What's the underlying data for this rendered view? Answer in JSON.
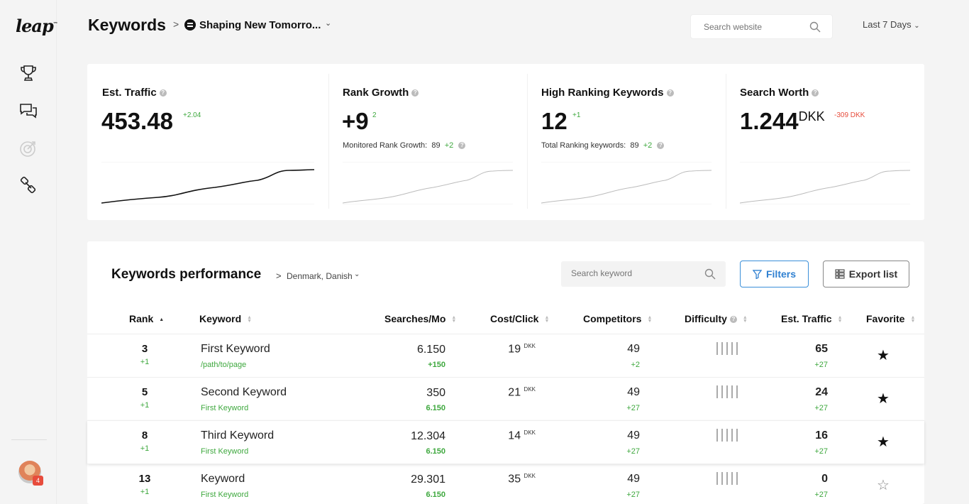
{
  "sidebar": {
    "logo": "leap",
    "logo_mark": "™",
    "nav": [
      {
        "name": "trophy-icon"
      },
      {
        "name": "chat-icon"
      },
      {
        "name": "target-icon"
      },
      {
        "name": "link-icon"
      }
    ],
    "avatar_badge": "4"
  },
  "header": {
    "title": "Keywords",
    "site_name": "Shaping New Tomorro...",
    "search_placeholder": "Search website",
    "date_range": "Last 7 Days"
  },
  "stats": [
    {
      "title": "Est. Traffic",
      "value": "453.48",
      "unit": "",
      "delta": "+2.04",
      "delta_type": "pos",
      "sub_label": "",
      "sub_value": "",
      "sub_delta": ""
    },
    {
      "title": "Rank Growth",
      "value": "+9",
      "unit": "",
      "delta": "2",
      "delta_type": "pos",
      "sub_label": "Monitored Rank Growth:",
      "sub_value": "89",
      "sub_delta": "+2"
    },
    {
      "title": "High Ranking Keywords",
      "value": "12",
      "unit": "",
      "delta": "+1",
      "delta_type": "pos",
      "sub_label": "Total Ranking keywords:",
      "sub_value": "89",
      "sub_delta": "+2"
    },
    {
      "title": "Search Worth",
      "value": "1.244",
      "unit": "DKK",
      "delta": "-309 DKK",
      "delta_type": "neg",
      "sub_label": "",
      "sub_value": "",
      "sub_delta": ""
    }
  ],
  "performance": {
    "title": "Keywords performance",
    "locale": "Denmark, Danish",
    "search_placeholder": "Search keyword",
    "filters_label": "Filters",
    "export_label": "Export list",
    "columns": {
      "rank": "Rank",
      "keyword": "Keyword",
      "searches": "Searches/Mo",
      "cpc": "Cost/Click",
      "competitors": "Competitors",
      "difficulty": "Difficulty",
      "traffic": "Est. Traffic",
      "favorite": "Favorite"
    },
    "rows": [
      {
        "rank": "3",
        "rank_delta": "+1",
        "keyword": "First Keyword",
        "sub": "/path/to/page",
        "searches": "6.150",
        "searches_delta": "+150",
        "cpc": "19",
        "cpc_unit": "DKK",
        "competitors": "49",
        "competitors_delta": "+2",
        "traffic": "65",
        "traffic_delta": "+27",
        "favorite": "★"
      },
      {
        "rank": "5",
        "rank_delta": "+1",
        "keyword": "Second Keyword",
        "sub": "First Keyword",
        "searches": "350",
        "searches_delta": "6.150",
        "cpc": "21",
        "cpc_unit": "DKK",
        "competitors": "49",
        "competitors_delta": "+27",
        "traffic": "24",
        "traffic_delta": "+27",
        "favorite": "★"
      },
      {
        "rank": "8",
        "rank_delta": "+1",
        "keyword": "Third Keyword",
        "sub": "First Keyword",
        "searches": "12.304",
        "searches_delta": "6.150",
        "cpc": "14",
        "cpc_unit": "DKK",
        "competitors": "49",
        "competitors_delta": "+27",
        "traffic": "16",
        "traffic_delta": "+27",
        "favorite": "★"
      },
      {
        "rank": "13",
        "rank_delta": "+1",
        "keyword": "Keyword",
        "sub": "First Keyword",
        "searches": "29.301",
        "searches_delta": "6.150",
        "cpc": "35",
        "cpc_unit": "DKK",
        "competitors": "49",
        "competitors_delta": "+27",
        "traffic": "0",
        "traffic_delta": "+27",
        "favorite": "☆"
      }
    ]
  }
}
